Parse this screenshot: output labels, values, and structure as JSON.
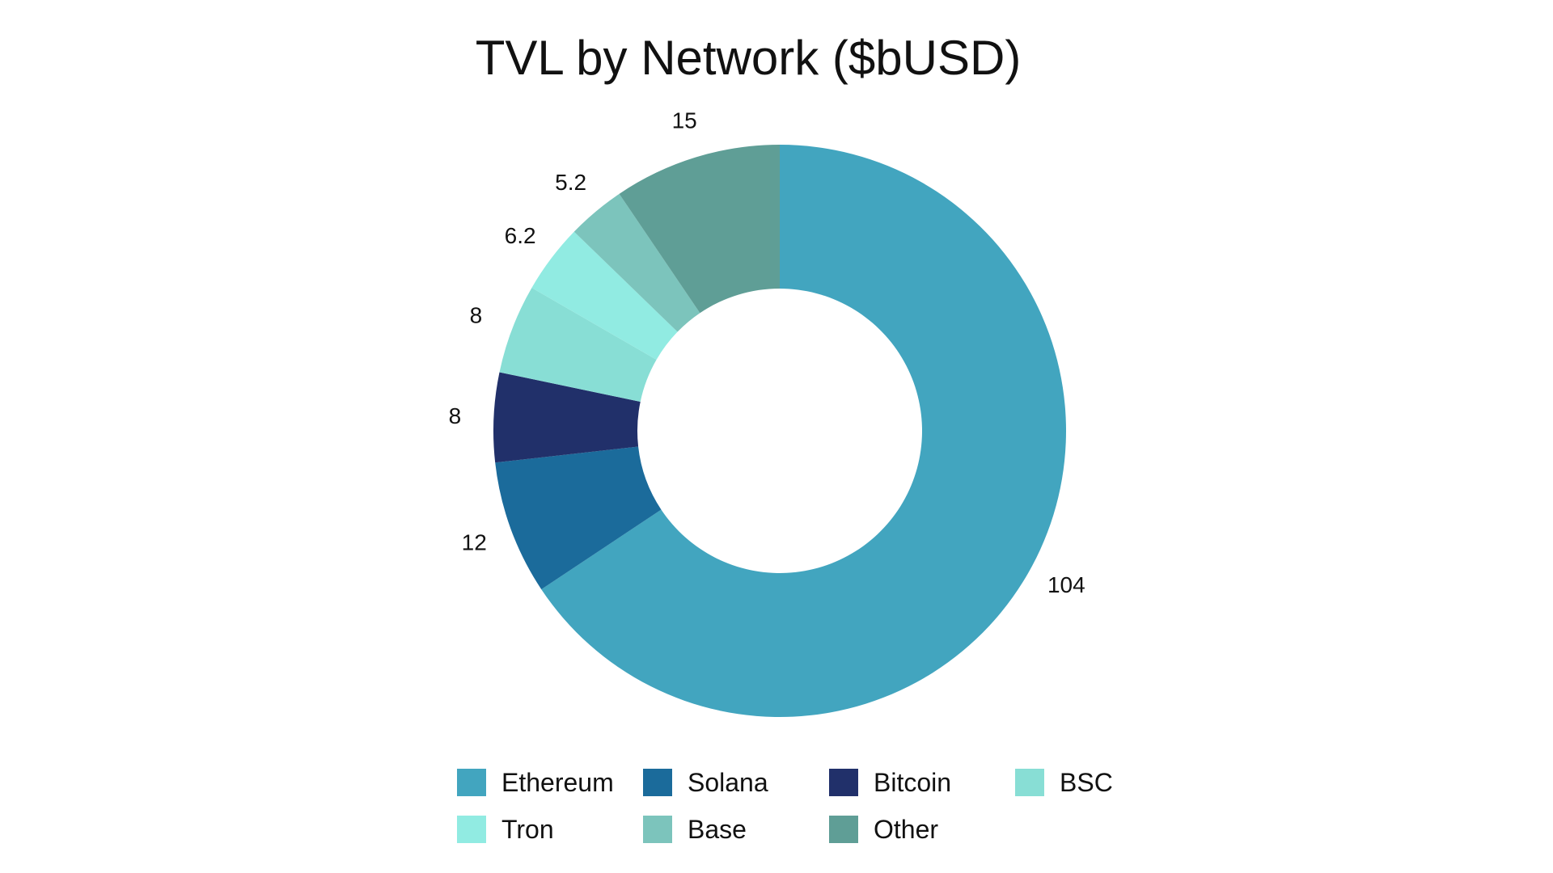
{
  "chart_data": {
    "type": "pie",
    "variant": "donut",
    "title": "TVL by Network ($bUSD)",
    "categories": [
      "Ethereum",
      "Solana",
      "Bitcoin",
      "BSC",
      "Tron",
      "Base",
      "Other"
    ],
    "values": [
      104,
      12,
      8,
      8,
      6.2,
      5.2,
      15
    ],
    "value_labels": [
      "104",
      "12",
      "8",
      "8",
      "6.2",
      "5.2",
      "15"
    ],
    "colors": [
      "#42a5bf",
      "#1b6b9b",
      "#21306a",
      "#88ded5",
      "#91ebe2",
      "#7cc4bc",
      "#5f9e96"
    ],
    "legend": {
      "placement": "bottom",
      "columns": 4
    },
    "xlabel": "",
    "ylabel": ""
  }
}
